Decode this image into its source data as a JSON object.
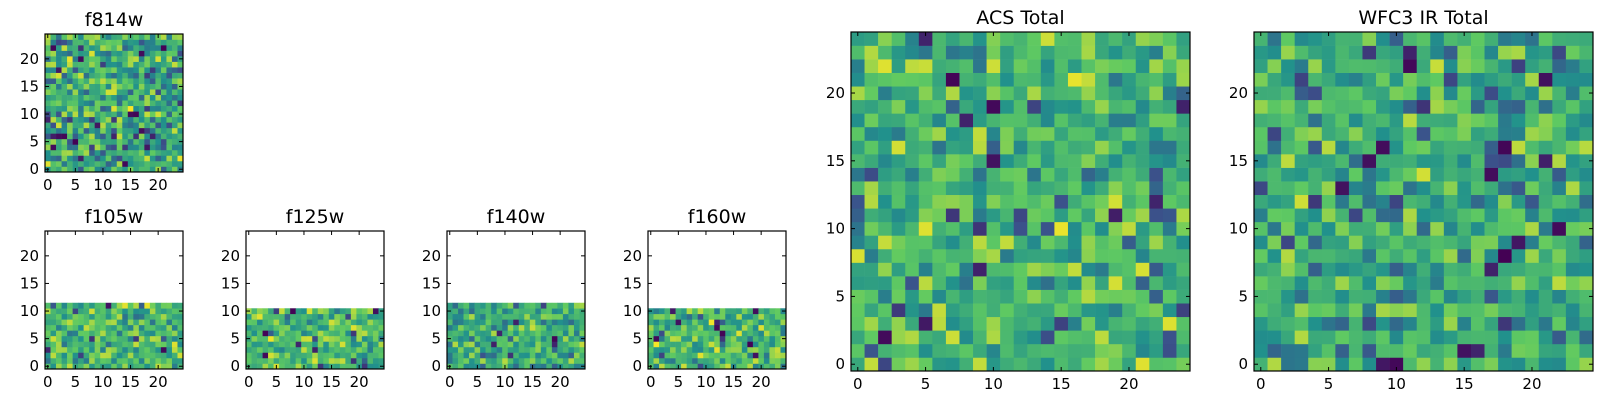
{
  "figure": {
    "background": "#ffffff",
    "colormap": [
      "#440154",
      "#3b528b",
      "#21918c",
      "#5ec962",
      "#fde725"
    ]
  },
  "chart_data": [
    {
      "type": "heatmap",
      "title": "f814w",
      "xlabel": "",
      "ylabel": "",
      "x_ticks": [
        0,
        5,
        10,
        15,
        20
      ],
      "y_ticks": [
        0,
        5,
        10,
        15,
        20
      ],
      "xlim": [
        -0.5,
        24.5
      ],
      "ylim": [
        -0.5,
        24.5
      ],
      "grid": false,
      "data_rows": [
        0,
        24
      ],
      "seed": 814,
      "value_range": [
        0.25,
        1.0
      ],
      "dark_fraction": 0.03
    },
    {
      "type": "heatmap",
      "title": "f105w",
      "xlabel": "",
      "ylabel": "",
      "x_ticks": [
        0,
        5,
        10,
        15,
        20
      ],
      "y_ticks": [
        0,
        5,
        10,
        15,
        20
      ],
      "xlim": [
        -0.5,
        24.5
      ],
      "ylim": [
        -0.5,
        24.5
      ],
      "grid": false,
      "data_rows": [
        0,
        11
      ],
      "seed": 105,
      "value_range": [
        0.35,
        1.0
      ],
      "dark_fraction": 0.015
    },
    {
      "type": "heatmap",
      "title": "f125w",
      "xlabel": "",
      "ylabel": "",
      "x_ticks": [
        0,
        5,
        10,
        15,
        20
      ],
      "y_ticks": [
        0,
        5,
        10,
        15,
        20
      ],
      "xlim": [
        -0.5,
        24.5
      ],
      "ylim": [
        -0.5,
        24.5
      ],
      "grid": false,
      "data_rows": [
        0,
        10
      ],
      "seed": 125,
      "value_range": [
        0.35,
        1.0
      ],
      "dark_fraction": 0.015
    },
    {
      "type": "heatmap",
      "title": "f140w",
      "xlabel": "",
      "ylabel": "",
      "x_ticks": [
        0,
        5,
        10,
        15,
        20
      ],
      "y_ticks": [
        0,
        5,
        10,
        15,
        20
      ],
      "xlim": [
        -0.5,
        24.5
      ],
      "ylim": [
        -0.5,
        24.5
      ],
      "grid": false,
      "data_rows": [
        0,
        11
      ],
      "seed": 140,
      "value_range": [
        0.3,
        0.95
      ],
      "dark_fraction": 0.01
    },
    {
      "type": "heatmap",
      "title": "f160w",
      "xlabel": "",
      "ylabel": "",
      "x_ticks": [
        0,
        5,
        10,
        15,
        20
      ],
      "y_ticks": [
        0,
        5,
        10,
        15,
        20
      ],
      "xlim": [
        -0.5,
        24.5
      ],
      "ylim": [
        -0.5,
        24.5
      ],
      "grid": false,
      "data_rows": [
        0,
        10
      ],
      "seed": 160,
      "value_range": [
        0.35,
        1.0
      ],
      "dark_fraction": 0.015
    },
    {
      "type": "heatmap",
      "title": "ACS Total",
      "xlabel": "",
      "ylabel": "",
      "x_ticks": [
        0,
        5,
        10,
        15,
        20
      ],
      "y_ticks": [
        0,
        5,
        10,
        15,
        20
      ],
      "xlim": [
        -0.5,
        24.5
      ],
      "ylim": [
        -0.5,
        24.5
      ],
      "grid": false,
      "data_rows": [
        0,
        24
      ],
      "seed": 2001,
      "value_range": [
        0.35,
        0.98
      ],
      "dark_fraction": 0.025
    },
    {
      "type": "heatmap",
      "title": "WFC3 IR Total",
      "xlabel": "",
      "ylabel": "",
      "x_ticks": [
        0,
        5,
        10,
        15,
        20
      ],
      "y_ticks": [
        0,
        5,
        10,
        15,
        20
      ],
      "xlim": [
        -0.5,
        24.5
      ],
      "ylim": [
        -0.5,
        24.5
      ],
      "grid": false,
      "data_rows": [
        0,
        24
      ],
      "seed": 3003,
      "value_range": [
        0.3,
        0.95
      ],
      "dark_fraction": 0.03
    }
  ]
}
